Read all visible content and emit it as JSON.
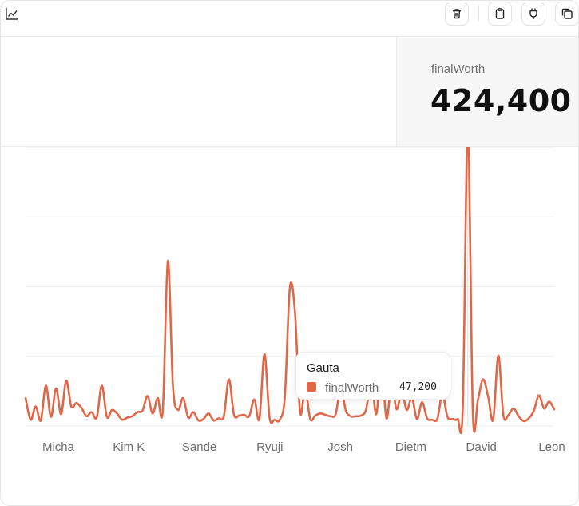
{
  "toolbar": {
    "chart_type_icon": "line-chart-icon",
    "buttons": [
      {
        "name": "delete-button",
        "icon": "trash-icon"
      },
      {
        "name": "clipboard-button",
        "icon": "clipboard-icon"
      },
      {
        "name": "connect-button",
        "icon": "plug-icon"
      },
      {
        "name": "duplicate-button",
        "icon": "copy-icon"
      }
    ]
  },
  "kpi": {
    "label": "finalWorth",
    "value": "424,400"
  },
  "tooltip": {
    "title": "Gauta",
    "series": "finalWorth",
    "value": "47,200"
  },
  "colors": {
    "series": "#e06848",
    "grid": "#ececec",
    "axis_text": "#6e6e6e"
  },
  "chart_data": {
    "type": "line",
    "title": "",
    "xlabel": "",
    "ylabel": "",
    "ylim": [
      0,
      400000
    ],
    "grid": true,
    "x_tick_labels": [
      "Micha",
      "Kim K",
      "Sande",
      "Ryuji",
      "Josh",
      "Dietm",
      "David",
      "Leon"
    ],
    "highlight": {
      "label": "Gauta",
      "value": 47200
    },
    "series": [
      {
        "name": "finalWorth",
        "values": [
          40000,
          9000,
          28000,
          8000,
          58000,
          13000,
          54000,
          17000,
          65000,
          28000,
          33000,
          26000,
          14000,
          20000,
          12000,
          58000,
          13000,
          23000,
          18000,
          9000,
          12000,
          14000,
          20000,
          22000,
          43000,
          18000,
          40000,
          23000,
          237000,
          56000,
          23000,
          40000,
          12000,
          20000,
          8000,
          10000,
          18000,
          8000,
          11000,
          14000,
          67000,
          16000,
          15000,
          16000,
          14000,
          38000,
          10000,
          103000,
          12000,
          9000,
          9000,
          42000,
          199000,
          163000,
          20000,
          54000,
          10000,
          15000,
          18000,
          16000,
          14000,
          17000,
          55000,
          22000,
          14000,
          14000,
          15000,
          24000,
          66000,
          17000,
          84000,
          11000,
          60000,
          24000,
          49000,
          23000,
          41000,
          10000,
          34000,
          11000,
          9000,
          10000,
          45000,
          13000,
          10000,
          10000,
          24000,
          424400,
          17000,
          38000,
          67000,
          42000,
          9000,
          101000,
          15000,
          16000,
          25000,
          14000,
          7000,
          11000,
          22000,
          44000,
          25000,
          35000,
          24000
        ]
      }
    ]
  }
}
